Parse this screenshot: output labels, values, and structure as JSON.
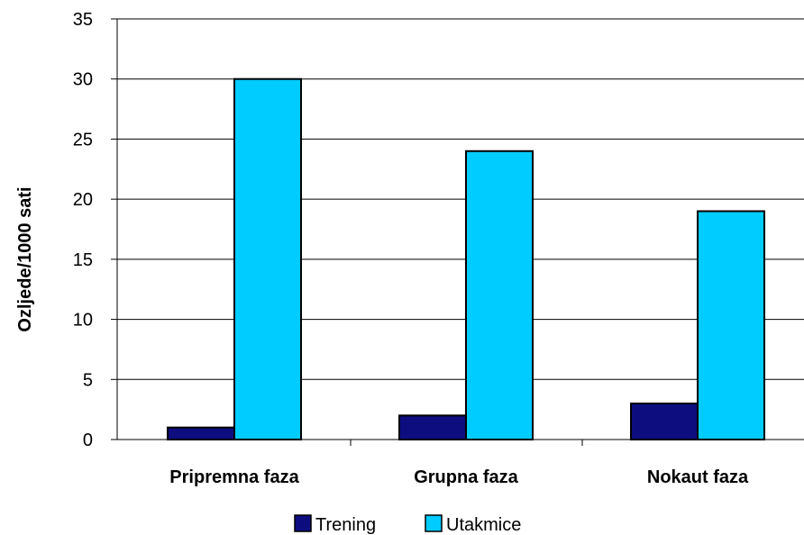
{
  "chart_data": {
    "type": "bar",
    "title": "",
    "xlabel": "",
    "ylabel": "Ozljede/1000 sati",
    "categories": [
      "Pripremna faza",
      "Grupna faza",
      "Nokaut faza"
    ],
    "series": [
      {
        "name": "Trening",
        "values": [
          1,
          2,
          3
        ],
        "color": "#0d0d80"
      },
      {
        "name": "Utakmice",
        "values": [
          30,
          24,
          19
        ],
        "color": "#00ccff"
      }
    ],
    "ylim": [
      0,
      35
    ],
    "yticks": [
      0,
      5,
      10,
      15,
      20,
      25,
      30,
      35
    ],
    "grid": true,
    "legend_position": "bottom"
  }
}
